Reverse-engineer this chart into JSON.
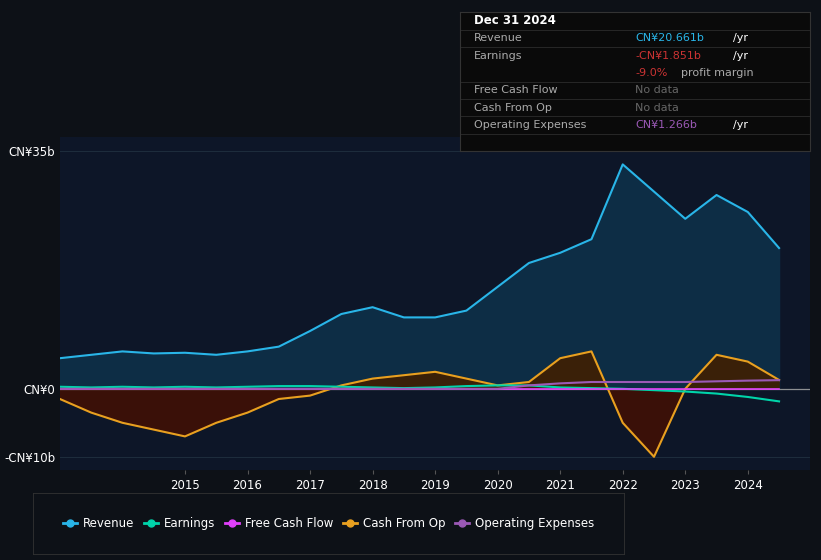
{
  "background_color": "#0d1117",
  "plot_bg_color": "#0d1628",
  "years": [
    2013.0,
    2013.5,
    2014.0,
    2014.5,
    2015.0,
    2015.5,
    2016.0,
    2016.5,
    2017.0,
    2017.5,
    2018.0,
    2018.5,
    2019.0,
    2019.5,
    2020.0,
    2020.5,
    2021.0,
    2021.5,
    2022.0,
    2022.5,
    2023.0,
    2023.5,
    2024.0,
    2024.5
  ],
  "revenue": [
    4.5,
    5.0,
    5.5,
    5.2,
    5.3,
    5.0,
    5.5,
    6.2,
    8.5,
    11.0,
    12.0,
    10.5,
    10.5,
    11.5,
    15.0,
    18.5,
    20.0,
    22.0,
    33.0,
    29.0,
    25.0,
    28.5,
    26.0,
    20.7
  ],
  "earnings": [
    0.3,
    0.2,
    0.3,
    0.2,
    0.3,
    0.2,
    0.3,
    0.4,
    0.4,
    0.3,
    0.2,
    0.1,
    0.2,
    0.4,
    0.5,
    0.5,
    0.2,
    0.1,
    0.0,
    -0.2,
    -0.4,
    -0.7,
    -1.2,
    -1.85
  ],
  "free_cash_flow": [
    0.0,
    0.0,
    0.0,
    0.0,
    0.0,
    0.0,
    0.0,
    0.0,
    0.0,
    0.0,
    0.0,
    0.0,
    0.0,
    0.0,
    0.0,
    0.0,
    0.0,
    0.0,
    0.0,
    0.0,
    0.0,
    0.0,
    0.0,
    0.0
  ],
  "cash_from_op": [
    -1.5,
    -3.5,
    -5.0,
    -6.0,
    -7.0,
    -5.0,
    -3.5,
    -1.5,
    -1.0,
    0.5,
    1.5,
    2.0,
    2.5,
    1.5,
    0.5,
    1.0,
    4.5,
    5.5,
    -5.0,
    -10.0,
    0.0,
    5.0,
    4.0,
    1.3
  ],
  "operating_expenses": [
    0.0,
    0.0,
    0.0,
    0.0,
    0.0,
    0.0,
    0.0,
    0.0,
    0.0,
    0.0,
    0.0,
    0.0,
    0.0,
    0.0,
    0.0,
    0.5,
    0.8,
    1.0,
    1.0,
    1.0,
    1.0,
    1.1,
    1.2,
    1.27
  ],
  "ylim": [
    -12,
    37
  ],
  "yticks": [
    -10,
    0,
    35
  ],
  "ytick_labels": [
    "-CN¥10b",
    "CN¥0",
    "CN¥35b"
  ],
  "xticks": [
    2015,
    2016,
    2017,
    2018,
    2019,
    2020,
    2021,
    2022,
    2023,
    2024
  ],
  "revenue_color": "#29b5e8",
  "revenue_fill_color": "#0d2d45",
  "earnings_color": "#00d4aa",
  "free_cash_flow_color": "#e040fb",
  "cash_from_op_color": "#e8a020",
  "cash_from_op_fill_pos_color": "#3a2008",
  "cash_from_op_fill_neg_color": "#3a1008",
  "operating_expenses_color": "#9b59b6",
  "zero_line_color": "#aaaaaa",
  "grid_color": "#1e2d3d",
  "tooltip_bg": "#0a0a0a",
  "tooltip_border": "#333333",
  "legend_items": [
    "Revenue",
    "Earnings",
    "Free Cash Flow",
    "Cash From Op",
    "Operating Expenses"
  ],
  "legend_colors": [
    "#29b5e8",
    "#00d4aa",
    "#e040fb",
    "#e8a020",
    "#9b59b6"
  ]
}
